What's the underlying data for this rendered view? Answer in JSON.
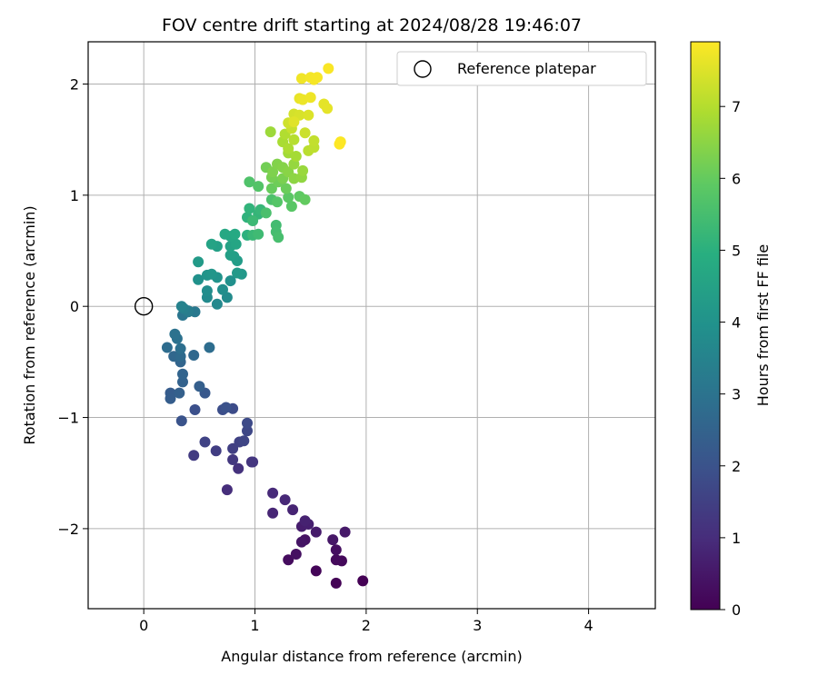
{
  "chart_data": {
    "type": "scatter",
    "title": "FOV centre drift starting at 2024/08/28 19:46:07",
    "xlabel": "Angular distance from reference (arcmin)",
    "ylabel": "Rotation from reference (arcmin)",
    "xlim": [
      -0.5,
      4.6
    ],
    "ylim": [
      -2.72,
      2.38
    ],
    "xticks": [
      0,
      1,
      2,
      3,
      4
    ],
    "yticks": [
      -2,
      -1,
      0,
      1,
      2
    ],
    "xtick_labels": [
      "0",
      "1",
      "2",
      "3",
      "4"
    ],
    "ytick_labels": [
      "−2",
      "−1",
      "0",
      "1",
      "2"
    ],
    "grid": true,
    "legend": {
      "placement": "top-right",
      "entries": [
        "Reference platepar"
      ]
    },
    "colorbar": {
      "label": "Hours from first FF file",
      "range": [
        0,
        7.9
      ],
      "ticks": [
        0,
        1,
        2,
        3,
        4,
        5,
        6,
        7
      ],
      "tick_labels": [
        "0",
        "1",
        "2",
        "3",
        "4",
        "5",
        "6",
        "7"
      ],
      "colormap": "viridis"
    },
    "reference_point": {
      "name": "Reference platepar",
      "x": 0,
      "y": 0
    },
    "series": [
      {
        "name": "FOV centre",
        "points": [
          [
            1.97,
            -2.47,
            0.0
          ],
          [
            1.73,
            -2.49,
            0.05
          ],
          [
            1.55,
            -2.38,
            0.1
          ],
          [
            1.78,
            -2.29,
            0.15
          ],
          [
            1.73,
            -2.28,
            0.2
          ],
          [
            1.3,
            -2.28,
            0.25
          ],
          [
            1.73,
            -2.19,
            0.3
          ],
          [
            1.37,
            -2.23,
            0.35
          ],
          [
            1.45,
            -2.1,
            0.4
          ],
          [
            1.42,
            -2.12,
            0.45
          ],
          [
            1.7,
            -2.1,
            0.5
          ],
          [
            1.81,
            -2.03,
            0.55
          ],
          [
            1.55,
            -2.03,
            0.6
          ],
          [
            1.42,
            -1.98,
            0.65
          ],
          [
            1.48,
            -1.96,
            0.7
          ],
          [
            1.45,
            -1.93,
            0.75
          ],
          [
            1.34,
            -1.83,
            0.8
          ],
          [
            1.16,
            -1.86,
            0.85
          ],
          [
            1.27,
            -1.74,
            0.9
          ],
          [
            1.16,
            -1.68,
            0.95
          ],
          [
            0.75,
            -1.65,
            1.05
          ],
          [
            0.85,
            -1.46,
            1.15
          ],
          [
            0.97,
            -1.4,
            1.2
          ],
          [
            0.98,
            -1.4,
            1.25
          ],
          [
            0.8,
            -1.38,
            1.3
          ],
          [
            0.45,
            -1.34,
            1.4
          ],
          [
            0.65,
            -1.3,
            1.45
          ],
          [
            0.8,
            -1.28,
            1.5
          ],
          [
            0.86,
            -1.22,
            1.55
          ],
          [
            0.55,
            -1.22,
            1.6
          ],
          [
            0.9,
            -1.21,
            1.65
          ],
          [
            0.93,
            -1.12,
            1.7
          ],
          [
            0.93,
            -1.05,
            1.8
          ],
          [
            0.8,
            -0.92,
            1.85
          ],
          [
            0.71,
            -0.93,
            1.9
          ],
          [
            0.46,
            -0.93,
            1.95
          ],
          [
            0.74,
            -0.91,
            2.0
          ],
          [
            0.34,
            -1.03,
            2.05
          ],
          [
            0.55,
            -0.78,
            2.2
          ],
          [
            0.24,
            -0.78,
            2.3
          ],
          [
            0.24,
            -0.83,
            2.35
          ],
          [
            0.5,
            -0.72,
            2.4
          ],
          [
            0.32,
            -0.78,
            2.45
          ],
          [
            0.35,
            -0.68,
            2.5
          ],
          [
            0.35,
            -0.61,
            2.55
          ],
          [
            0.33,
            -0.5,
            2.6
          ],
          [
            0.27,
            -0.45,
            2.65
          ],
          [
            0.45,
            -0.44,
            2.7
          ],
          [
            0.33,
            -0.45,
            2.75
          ],
          [
            0.21,
            -0.37,
            2.8
          ],
          [
            0.59,
            -0.37,
            2.85
          ],
          [
            0.33,
            -0.38,
            2.9
          ],
          [
            0.3,
            -0.29,
            2.95
          ],
          [
            0.28,
            -0.25,
            3.0
          ],
          [
            0.35,
            -0.08,
            3.1
          ],
          [
            0.46,
            -0.05,
            3.2
          ],
          [
            0.4,
            -0.05,
            3.25
          ],
          [
            0.4,
            -0.04,
            3.3
          ],
          [
            0.36,
            -0.02,
            3.4
          ],
          [
            0.34,
            0.0,
            3.5
          ],
          [
            0.66,
            0.02,
            3.7
          ],
          [
            0.57,
            0.08,
            3.75
          ],
          [
            0.75,
            0.08,
            3.8
          ],
          [
            0.57,
            0.14,
            3.85
          ],
          [
            0.71,
            0.15,
            3.9
          ],
          [
            0.78,
            0.23,
            3.95
          ],
          [
            0.49,
            0.24,
            4.0
          ],
          [
            0.66,
            0.26,
            4.05
          ],
          [
            0.57,
            0.28,
            4.1
          ],
          [
            0.61,
            0.29,
            4.15
          ],
          [
            0.88,
            0.29,
            4.2
          ],
          [
            0.84,
            0.3,
            4.25
          ],
          [
            0.49,
            0.4,
            4.3
          ],
          [
            0.84,
            0.41,
            4.35
          ],
          [
            0.81,
            0.45,
            4.4
          ],
          [
            0.78,
            0.46,
            4.45
          ],
          [
            0.66,
            0.54,
            4.5
          ],
          [
            0.78,
            0.54,
            4.55
          ],
          [
            0.61,
            0.56,
            4.6
          ],
          [
            0.83,
            0.56,
            4.65
          ],
          [
            0.78,
            0.63,
            4.7
          ],
          [
            0.73,
            0.65,
            4.75
          ],
          [
            0.82,
            0.65,
            4.8
          ],
          [
            0.93,
            0.64,
            5.05
          ],
          [
            0.93,
            0.8,
            5.1
          ],
          [
            0.95,
            0.88,
            5.15
          ],
          [
            1.03,
            0.83,
            5.2
          ],
          [
            1.05,
            0.87,
            5.25
          ],
          [
            0.98,
            0.64,
            5.3
          ],
          [
            0.98,
            0.77,
            5.35
          ],
          [
            1.03,
            0.65,
            5.4
          ],
          [
            1.19,
            0.73,
            5.45
          ],
          [
            1.19,
            0.67,
            5.5
          ],
          [
            1.21,
            0.62,
            5.55
          ],
          [
            1.1,
            0.84,
            5.6
          ],
          [
            1.15,
            0.96,
            5.65
          ],
          [
            0.95,
            1.12,
            5.7
          ],
          [
            1.03,
            1.08,
            5.75
          ],
          [
            1.2,
            0.94,
            5.8
          ],
          [
            1.33,
            0.9,
            5.85
          ],
          [
            1.3,
            0.98,
            5.9
          ],
          [
            1.4,
            0.99,
            5.95
          ],
          [
            1.45,
            0.96,
            6.0
          ],
          [
            1.15,
            1.06,
            6.05
          ],
          [
            1.28,
            1.06,
            6.1
          ],
          [
            1.21,
            1.12,
            6.15
          ],
          [
            1.1,
            1.25,
            6.2
          ],
          [
            1.15,
            1.16,
            6.25
          ],
          [
            1.25,
            1.15,
            6.3
          ],
          [
            1.16,
            1.21,
            6.35
          ],
          [
            1.2,
            1.28,
            6.4
          ],
          [
            1.25,
            1.25,
            6.45
          ],
          [
            1.3,
            1.21,
            6.5
          ],
          [
            1.35,
            1.15,
            6.55
          ],
          [
            1.42,
            1.16,
            6.6
          ],
          [
            1.35,
            1.28,
            6.65
          ],
          [
            1.43,
            1.22,
            6.7
          ],
          [
            1.14,
            1.57,
            6.75
          ],
          [
            1.3,
            1.38,
            6.8
          ],
          [
            1.37,
            1.35,
            6.85
          ],
          [
            1.25,
            1.48,
            6.9
          ],
          [
            1.3,
            1.42,
            6.95
          ],
          [
            1.27,
            1.55,
            7.0
          ],
          [
            1.35,
            1.5,
            7.05
          ],
          [
            1.48,
            1.4,
            7.1
          ],
          [
            1.53,
            1.43,
            7.15
          ],
          [
            1.53,
            1.49,
            7.2
          ],
          [
            1.33,
            1.6,
            7.25
          ],
          [
            1.45,
            1.56,
            7.3
          ],
          [
            1.3,
            1.65,
            7.35
          ],
          [
            1.35,
            1.73,
            7.4
          ],
          [
            1.4,
            1.72,
            7.45
          ],
          [
            1.48,
            1.72,
            7.5
          ],
          [
            1.35,
            1.66,
            7.55
          ],
          [
            1.62,
            1.82,
            7.6
          ],
          [
            1.65,
            1.78,
            7.62
          ],
          [
            1.4,
            1.87,
            7.65
          ],
          [
            1.43,
            1.86,
            7.7
          ],
          [
            1.5,
            1.88,
            7.72
          ],
          [
            1.42,
            2.05,
            7.75
          ],
          [
            1.5,
            2.06,
            7.78
          ],
          [
            1.53,
            2.04,
            7.8
          ],
          [
            1.56,
            2.06,
            7.82
          ],
          [
            1.66,
            2.14,
            7.85
          ],
          [
            1.77,
            1.48,
            7.87
          ],
          [
            1.76,
            1.46,
            7.9
          ]
        ]
      }
    ]
  }
}
